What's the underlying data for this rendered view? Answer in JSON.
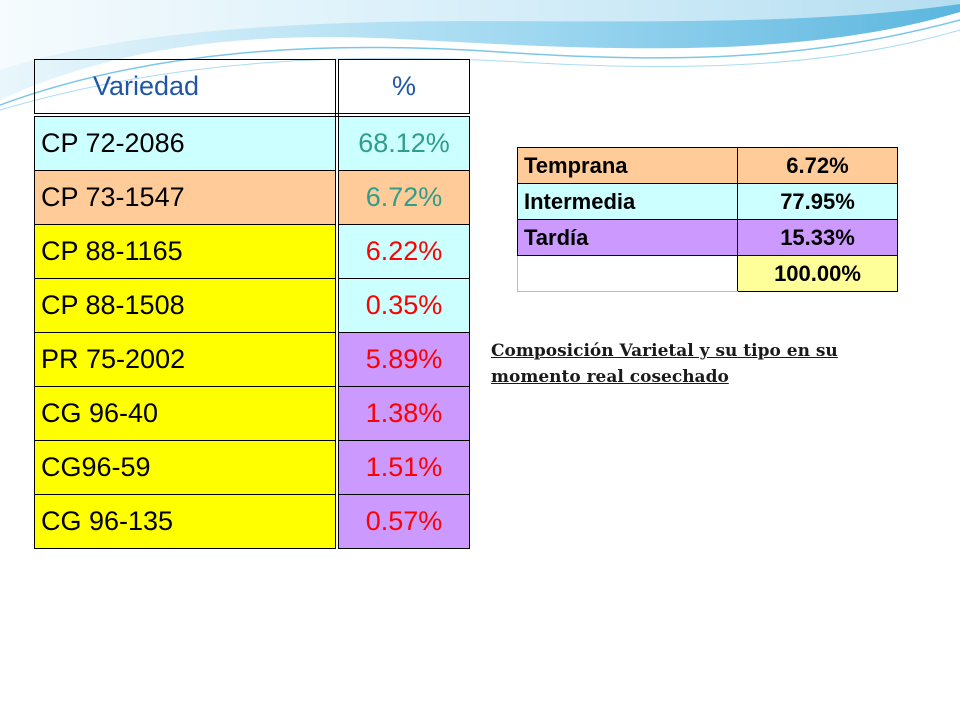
{
  "main_table": {
    "headers": {
      "variety": "Variedad",
      "percent": "%"
    },
    "rows": [
      {
        "variety": "CP 72-2086",
        "percent": "68.12%",
        "variety_bg": "#ccffff",
        "percent_bg": "#ccffff",
        "percent_color": "#2e9e8a"
      },
      {
        "variety": "CP 73-1547",
        "percent": "6.72%",
        "variety_bg": "#ffcc99",
        "percent_bg": "#ffcc99",
        "percent_color": "#2e9e8a"
      },
      {
        "variety": "CP 88-1165",
        "percent": "6.22%",
        "variety_bg": "#ffff00",
        "percent_bg": "#ccffff",
        "percent_color": "#ff0000"
      },
      {
        "variety": "CP 88-1508",
        "percent": "0.35%",
        "variety_bg": "#ffff00",
        "percent_bg": "#ccffff",
        "percent_color": "#ff0000"
      },
      {
        "variety": "PR 75-2002",
        "percent": "5.89%",
        "variety_bg": "#ffff00",
        "percent_bg": "#cc99ff",
        "percent_color": "#ff0000"
      },
      {
        "variety": "CG 96-40",
        "percent": "1.38%",
        "variety_bg": "#ffff00",
        "percent_bg": "#cc99ff",
        "percent_color": "#ff0000"
      },
      {
        "variety": "CG96-59",
        "percent": "1.51%",
        "variety_bg": "#ffff00",
        "percent_bg": "#cc99ff",
        "percent_color": "#ff0000"
      },
      {
        "variety": "CG 96-135",
        "percent": "0.57%",
        "variety_bg": "#ffff00",
        "percent_bg": "#cc99ff",
        "percent_color": "#ff0000"
      }
    ]
  },
  "summary_table": {
    "rows": [
      {
        "label": "Temprana",
        "value": "6.72%",
        "bg": "#ffcc99"
      },
      {
        "label": "Intermedia",
        "value": "77.95%",
        "bg": "#ccffff"
      },
      {
        "label": "Tardía",
        "value": "15.33%",
        "bg": "#cc99ff"
      }
    ],
    "total": {
      "label": "",
      "value": "100.00%",
      "bg": "#ffff99"
    }
  },
  "caption": "Composición Varietal y su tipo en su momento real cosechado",
  "colors": {
    "header_text": "#1f57a8",
    "wave_light": "#bfe6f7",
    "wave_dark": "#5bb8e0"
  }
}
